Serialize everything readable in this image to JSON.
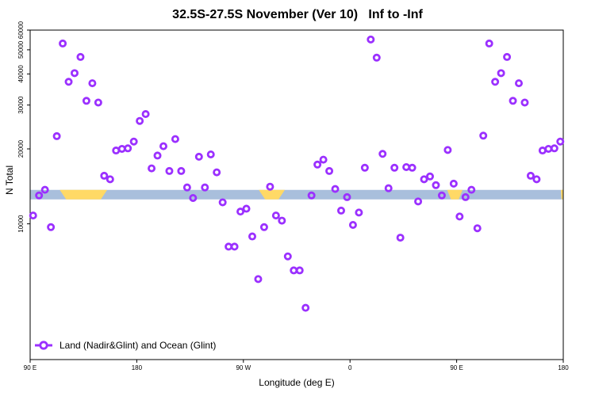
{
  "chart_data": {
    "type": "scatter",
    "title": "32.5S-27.5S November (Ver 10)   Inf to -Inf",
    "xlabel": "Longitude (deg E)",
    "ylabel": "N Total",
    "xlim": [
      90,
      540
    ],
    "ylim": [
      2850,
      60000
    ],
    "y_scale": "log",
    "x_tick_values": [
      90,
      180,
      270,
      360,
      450,
      540
    ],
    "x_tick_labels": [
      "90 E",
      "180",
      "90 W",
      "0",
      "90 E",
      "180"
    ],
    "y_tick_values": [
      10000,
      20000,
      30000,
      40000,
      50000,
      60000
    ],
    "y_tick_labels": [
      "10000",
      "20000",
      "30000",
      "40000",
      "50000",
      "60000"
    ],
    "band": {
      "y": 13100,
      "color": "#a9bfdc",
      "highlight_color": "#ffd966",
      "highlight_ranges": [
        [
          115,
          155
        ],
        [
          283,
          305
        ],
        [
          442,
          455
        ],
        [
          538,
          575
        ]
      ]
    },
    "legend": {
      "position": "bottom-left"
    },
    "series": [
      {
        "name": "Land (Nadir&Glint) and Ocean (Glint)",
        "color": "#9b30ff",
        "x": [
          92.5,
          97.5,
          102.5,
          107.5,
          112.5,
          117.5,
          122.5,
          127.5,
          132.5,
          137.5,
          142.5,
          147.5,
          152.5,
          157.5,
          162.5,
          167.5,
          172.5,
          177.5,
          182.5,
          187.5,
          192.5,
          197.5,
          202.5,
          207.5,
          212.5,
          217.5,
          222.5,
          227.5,
          232.5,
          237.5,
          242.5,
          247.5,
          252.5,
          257.5,
          262.5,
          267.5,
          272.5,
          277.5,
          282.5,
          287.5,
          292.5,
          297.5,
          302.5,
          307.5,
          312.5,
          317.5,
          322.5,
          327.5,
          332.5,
          337.5,
          342.5,
          347.5,
          352.5,
          357.5,
          362.5,
          367.5,
          372.5,
          377.5,
          382.5,
          387.5,
          392.5,
          397.5,
          402.5,
          407.5,
          412.5,
          417.5,
          422.5,
          427.5,
          432.5,
          437.5,
          442.5,
          447.5,
          452.5,
          457.5,
          462.5,
          467.5,
          472.5,
          477.5,
          482.5,
          487.5,
          492.5,
          497.5,
          502.5,
          507.5,
          512.5,
          517.5,
          522.5,
          527.5,
          532.5,
          537.5
        ],
        "y": [
          10800,
          13000,
          13700,
          9700,
          22500,
          53000,
          37200,
          40300,
          46800,
          31200,
          36700,
          30700,
          15600,
          15100,
          19700,
          20000,
          20100,
          21400,
          25900,
          27600,
          16700,
          18800,
          20500,
          16300,
          21900,
          16300,
          14000,
          12700,
          18600,
          14000,
          19000,
          16100,
          12200,
          8100,
          8100,
          11200,
          11500,
          8900,
          6000,
          9700,
          14100,
          10800,
          10300,
          7400,
          6500,
          6500,
          4600,
          13000,
          17300,
          18100,
          16300,
          13800,
          11300,
          12800,
          9900,
          11100,
          16800,
          55000,
          46500,
          19100,
          13900,
          16800,
          8800,
          16900,
          16800,
          12300,
          15100,
          15500,
          14300,
          13000,
          19800,
          14500,
          10700,
          12800,
          13700,
          9600,
          22600,
          53000,
          37200,
          40300,
          46800,
          31200,
          36700,
          30700,
          15600,
          15100,
          19700,
          20000,
          20100,
          21400
        ]
      }
    ]
  }
}
